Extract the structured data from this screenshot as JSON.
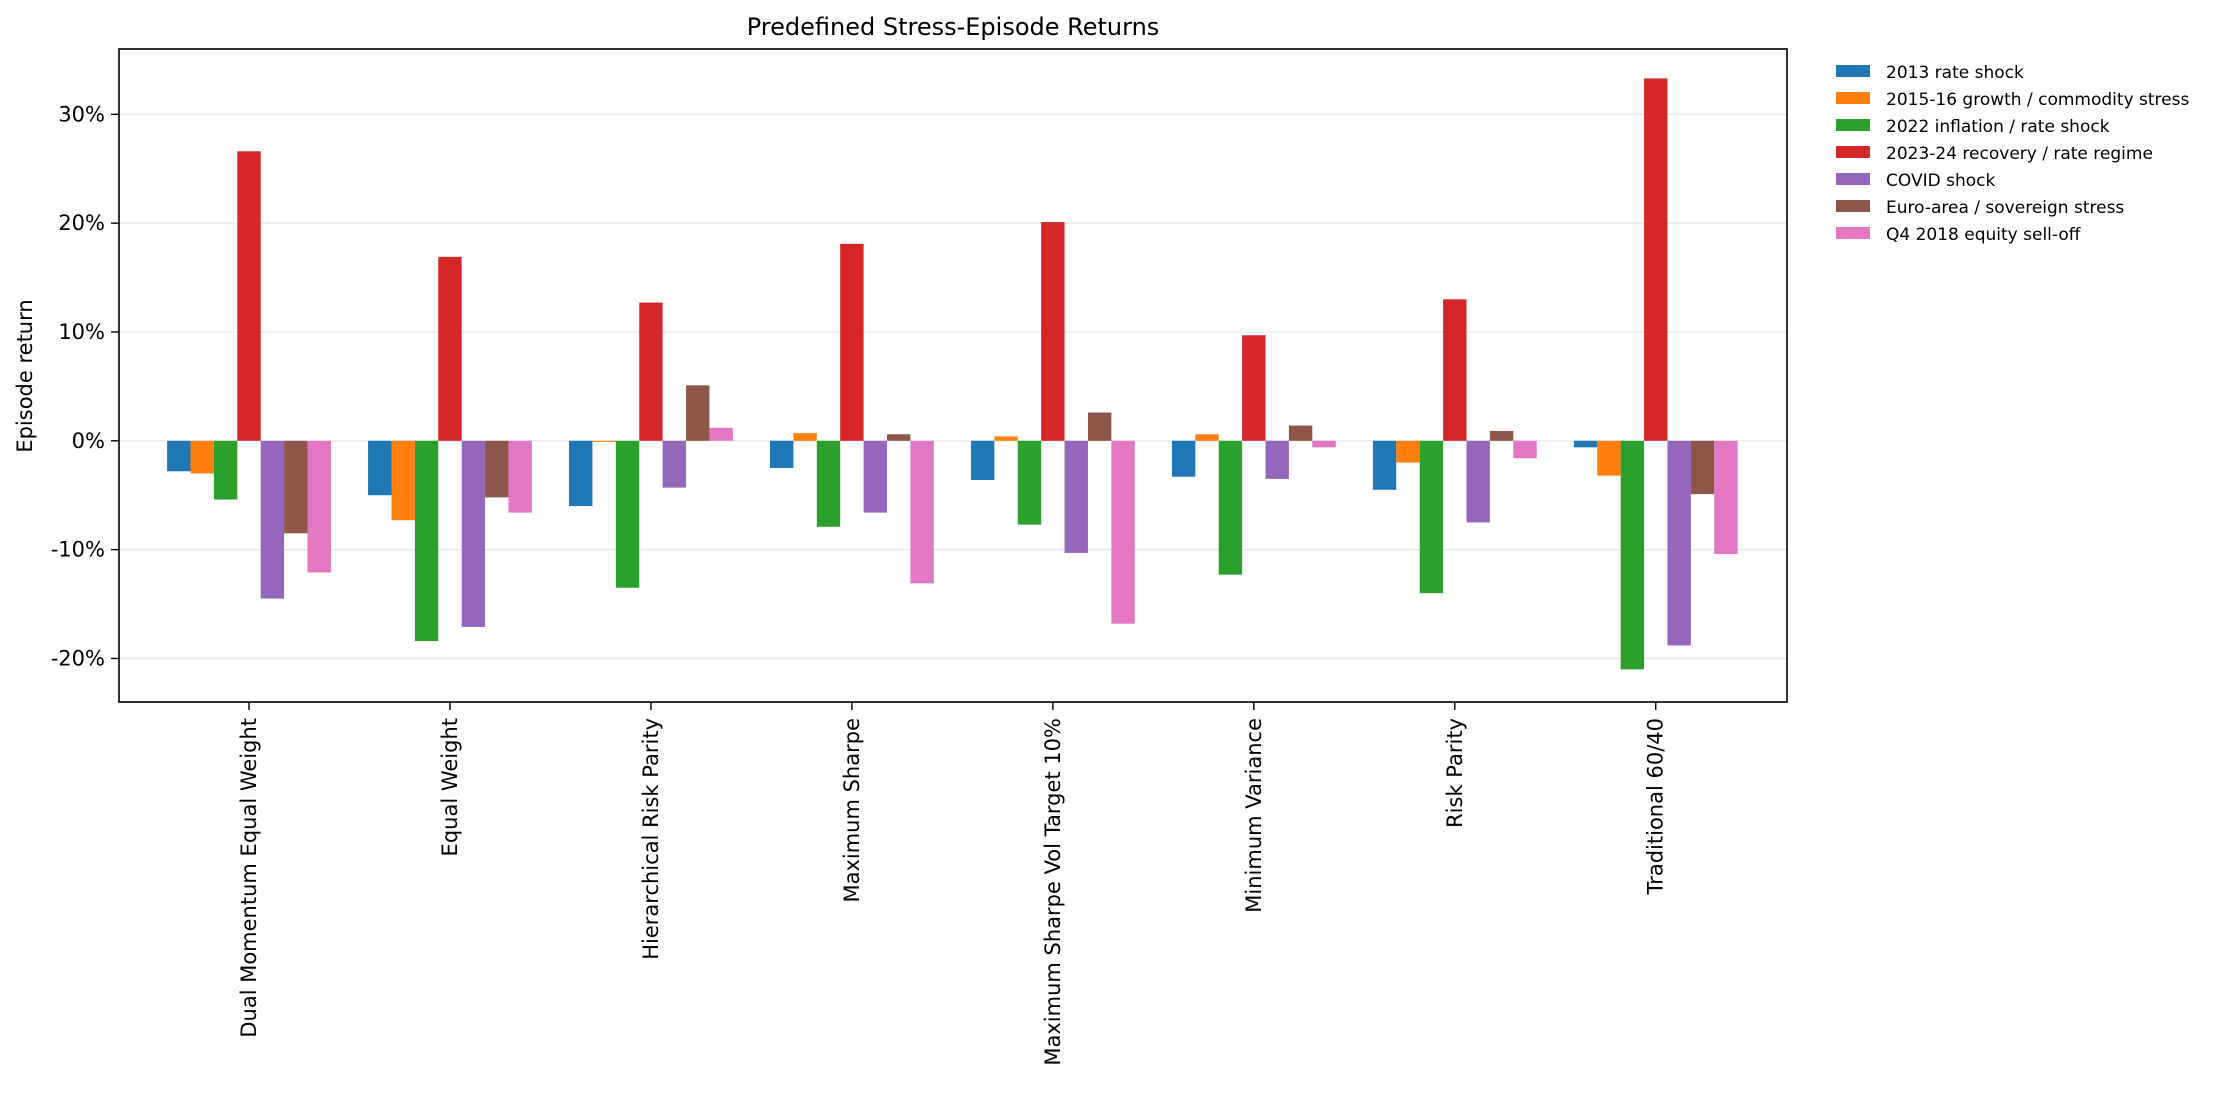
{
  "chart_data": {
    "type": "bar",
    "title": "Predefined Stress-Episode Returns",
    "xlabel": "",
    "ylabel": "Episode return",
    "ylim": [
      -24,
      36
    ],
    "yticks": [
      -20,
      -10,
      0,
      10,
      20,
      30
    ],
    "ytick_labels": [
      "-20%",
      "-10%",
      "0%",
      "10%",
      "20%",
      "30%"
    ],
    "grid": "y-major",
    "legend_position": "outside-top-right",
    "categories": [
      "Dual Momentum Equal Weight",
      "Equal Weight",
      "Hierarchical Risk Parity",
      "Maximum Sharpe",
      "Maximum Sharpe Vol Target 10%",
      "Minimum Variance",
      "Risk Parity",
      "Traditional 60/40"
    ],
    "series": [
      {
        "name": "2013 rate shock",
        "color": "#1f77b4",
        "values": [
          -2.8,
          -5.0,
          -6.0,
          -2.5,
          -3.6,
          -3.3,
          -4.5,
          -0.6
        ]
      },
      {
        "name": "2015-16 growth / commodity stress",
        "color": "#ff7f0e",
        "values": [
          -3.0,
          -7.3,
          -0.1,
          0.7,
          0.4,
          0.6,
          -2.0,
          -3.2
        ]
      },
      {
        "name": "2022 inflation / rate shock",
        "color": "#2ca02c",
        "values": [
          -5.4,
          -18.4,
          -13.5,
          -7.9,
          -7.7,
          -12.3,
          -14.0,
          -21.0
        ]
      },
      {
        "name": "2023-24 recovery / rate regime",
        "color": "#d62728",
        "values": [
          26.6,
          16.9,
          12.7,
          18.1,
          20.1,
          9.7,
          13.0,
          33.3
        ]
      },
      {
        "name": "COVID shock",
        "color": "#9467bd",
        "values": [
          -14.5,
          -17.1,
          -4.3,
          -6.6,
          -10.3,
          -3.5,
          -7.5,
          -18.8
        ]
      },
      {
        "name": "Euro-area / sovereign stress",
        "color": "#8c564b",
        "values": [
          -8.5,
          -5.2,
          5.1,
          0.6,
          2.6,
          1.4,
          0.9,
          -4.9
        ]
      },
      {
        "name": "Q4 2018 equity sell-off",
        "color": "#e377c2",
        "values": [
          -12.1,
          -6.6,
          1.2,
          -13.1,
          -16.8,
          -0.6,
          -1.6,
          -10.4
        ]
      }
    ]
  }
}
